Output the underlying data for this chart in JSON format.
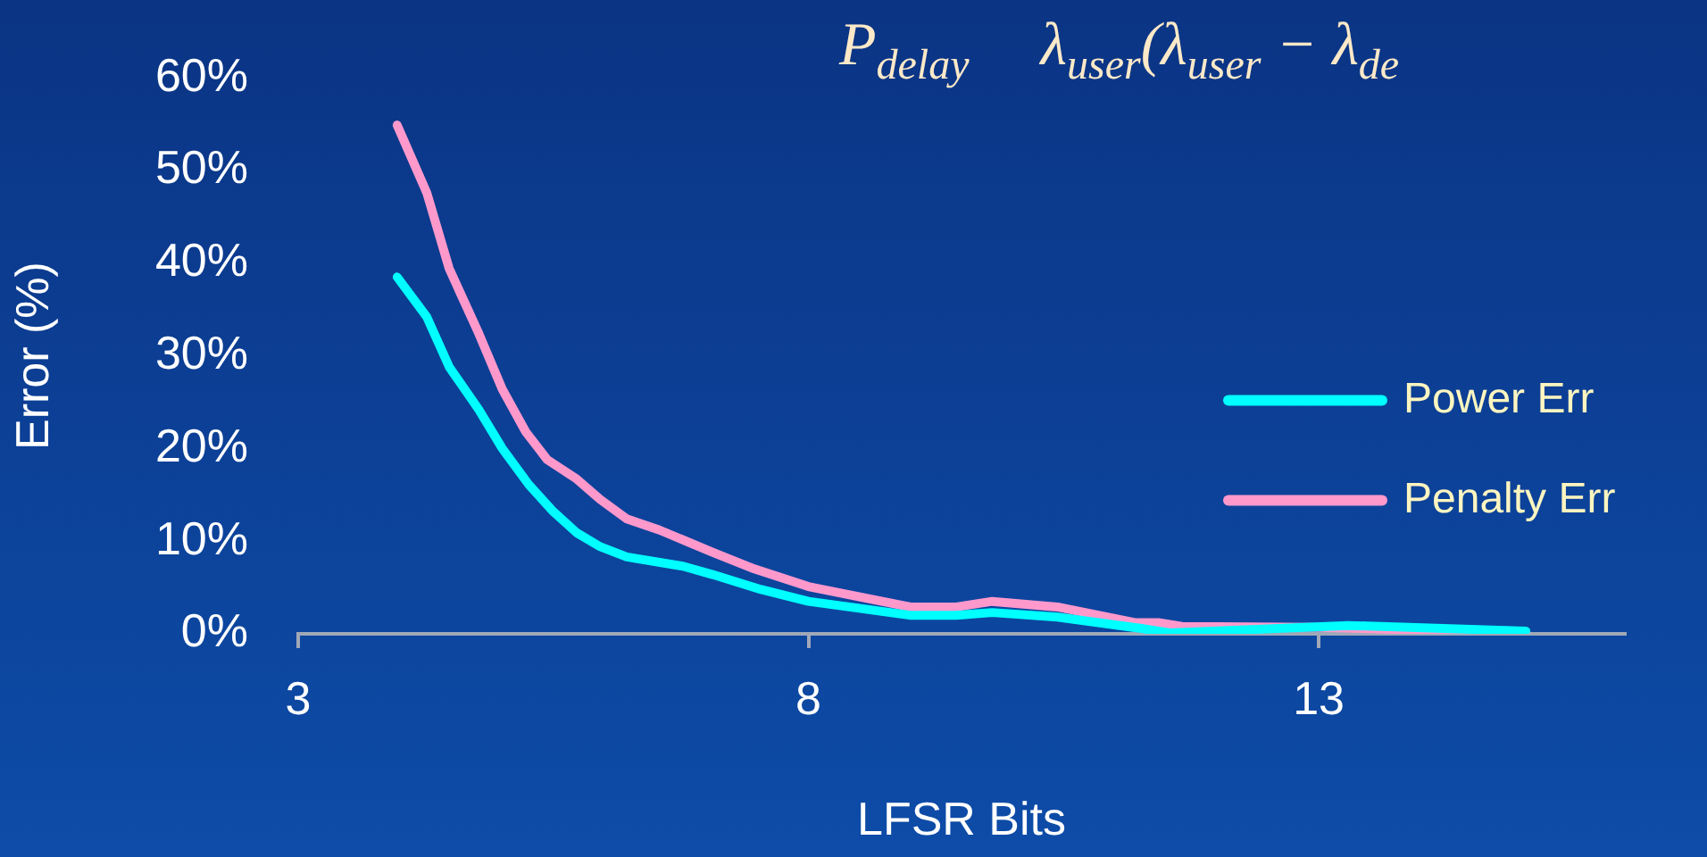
{
  "chart_data": {
    "type": "line",
    "xlabel": "LFSR Bits",
    "ylabel": "Error (%)",
    "annotations": [
      "P$_{delay}$",
      "λ$_{user}$(λ$_{user}$ − λ$_{de}$"
    ],
    "xlim": [
      3,
      16
    ],
    "xticks": [
      3,
      8,
      13
    ],
    "ylim": [
      0,
      60
    ],
    "yticks": [
      {
        "value": 0,
        "label": "0%"
      },
      {
        "value": 10,
        "label": "10%"
      },
      {
        "value": 20,
        "label": "20%"
      },
      {
        "value": 30,
        "label": "30%"
      },
      {
        "value": 40,
        "label": "40%"
      },
      {
        "value": 50,
        "label": "50%"
      },
      {
        "value": 60,
        "label": "60%"
      }
    ],
    "grid": false,
    "legend": "right",
    "marker": "none",
    "line_style": "solid",
    "series": [
      {
        "name": "Power Err",
        "color": "#00ffff",
        "x": [
          3.97,
          4.26,
          4.48,
          4.77,
          5.0,
          5.26,
          5.49,
          5.73,
          5.96,
          6.22,
          6.77,
          7.06,
          7.53,
          8.0,
          9.0,
          9.45,
          9.8,
          10.44,
          11.25,
          11.54,
          13.29,
          15.03
        ],
        "values": [
          38.5,
          34.2,
          28.8,
          24.2,
          20.0,
          16.1,
          13.3,
          10.9,
          9.4,
          8.3,
          7.3,
          6.4,
          4.8,
          3.5,
          2.0,
          2.0,
          2.3,
          1.8,
          0.6,
          0.1,
          0.9,
          0.3
        ]
      },
      {
        "name": "Penalty Err",
        "color": "#ff99cc",
        "x": [
          3.97,
          4.26,
          4.48,
          4.77,
          5.0,
          5.23,
          5.44,
          5.73,
          5.96,
          6.22,
          6.54,
          7.06,
          7.47,
          8.0,
          9.0,
          9.45,
          9.8,
          10.44,
          11.2,
          11.43,
          11.66,
          13.0,
          15.03
        ],
        "values": [
          54.9,
          47.6,
          39.4,
          32.4,
          26.4,
          21.8,
          18.8,
          16.7,
          14.5,
          12.4,
          11.2,
          8.8,
          7.0,
          5.1,
          2.9,
          2.9,
          3.5,
          2.9,
          1.2,
          1.2,
          0.8,
          0.7,
          0.1
        ]
      }
    ]
  }
}
